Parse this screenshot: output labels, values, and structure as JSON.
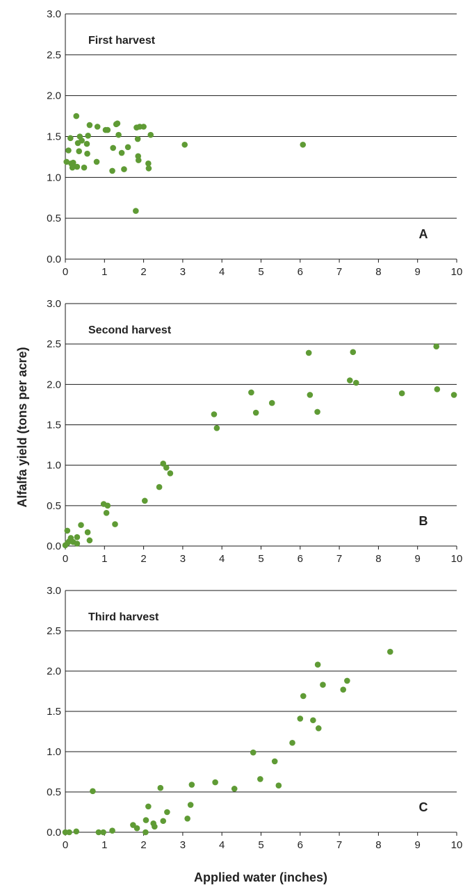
{
  "figure": {
    "ylabel": "Alfalfa yield (tons per acre)",
    "xlabel": "Applied water (inches)"
  },
  "colors": {
    "point": "#5f9b35",
    "grid": "#1a1a1a",
    "text": "#222222"
  },
  "chart_data": [
    {
      "type": "scatter",
      "title": "First harvest",
      "panel_label": "A",
      "xlim": [
        0,
        10
      ],
      "ylim": [
        0,
        3
      ],
      "x_ticks": [
        "0",
        "1",
        "2",
        "3",
        "4",
        "5",
        "6",
        "7",
        "8",
        "9",
        "10"
      ],
      "y_ticks": [
        "0.0",
        "0.5",
        "1.0",
        "1.5",
        "2.0",
        "2.5",
        "3.0"
      ],
      "grid": "horizontal",
      "points": [
        {
          "x": 0.03,
          "y": 1.19
        },
        {
          "x": 0.08,
          "y": 1.33
        },
        {
          "x": 0.13,
          "y": 1.48
        },
        {
          "x": 0.15,
          "y": 1.17
        },
        {
          "x": 0.18,
          "y": 1.12
        },
        {
          "x": 0.2,
          "y": 1.18
        },
        {
          "x": 0.28,
          "y": 1.75
        },
        {
          "x": 0.3,
          "y": 1.13
        },
        {
          "x": 0.32,
          "y": 1.42
        },
        {
          "x": 0.35,
          "y": 1.32
        },
        {
          "x": 0.37,
          "y": 1.5
        },
        {
          "x": 0.42,
          "y": 1.45
        },
        {
          "x": 0.48,
          "y": 1.12
        },
        {
          "x": 0.55,
          "y": 1.41
        },
        {
          "x": 0.56,
          "y": 1.29
        },
        {
          "x": 0.58,
          "y": 1.51
        },
        {
          "x": 0.62,
          "y": 1.64
        },
        {
          "x": 0.8,
          "y": 1.19
        },
        {
          "x": 0.82,
          "y": 1.62
        },
        {
          "x": 1.03,
          "y": 1.58
        },
        {
          "x": 1.08,
          "y": 1.58
        },
        {
          "x": 1.2,
          "y": 1.08
        },
        {
          "x": 1.22,
          "y": 1.36
        },
        {
          "x": 1.3,
          "y": 1.65
        },
        {
          "x": 1.33,
          "y": 1.66
        },
        {
          "x": 1.36,
          "y": 1.52
        },
        {
          "x": 1.44,
          "y": 1.3
        },
        {
          "x": 1.5,
          "y": 1.1
        },
        {
          "x": 1.6,
          "y": 1.37
        },
        {
          "x": 1.8,
          "y": 0.59
        },
        {
          "x": 1.82,
          "y": 1.61
        },
        {
          "x": 1.85,
          "y": 1.47
        },
        {
          "x": 1.86,
          "y": 1.26
        },
        {
          "x": 1.87,
          "y": 1.21
        },
        {
          "x": 1.9,
          "y": 1.62
        },
        {
          "x": 2.0,
          "y": 1.62
        },
        {
          "x": 2.12,
          "y": 1.17
        },
        {
          "x": 2.13,
          "y": 1.11
        },
        {
          "x": 2.18,
          "y": 1.52
        },
        {
          "x": 3.05,
          "y": 1.4
        },
        {
          "x": 6.07,
          "y": 1.4
        }
      ]
    },
    {
      "type": "scatter",
      "title": "Second harvest",
      "panel_label": "B",
      "xlim": [
        0,
        10
      ],
      "ylim": [
        0,
        3
      ],
      "x_ticks": [
        "0",
        "1",
        "2",
        "3",
        "4",
        "5",
        "6",
        "7",
        "8",
        "9",
        "10"
      ],
      "y_ticks": [
        "0.0",
        "0.5",
        "1.0",
        "1.5",
        "2.0",
        "2.5",
        "3.0"
      ],
      "grid": "horizontal",
      "points": [
        {
          "x": 0.0,
          "y": 0.01
        },
        {
          "x": 0.05,
          "y": 0.19
        },
        {
          "x": 0.06,
          "y": 0.04
        },
        {
          "x": 0.1,
          "y": 0.06
        },
        {
          "x": 0.14,
          "y": 0.1
        },
        {
          "x": 0.2,
          "y": 0.05
        },
        {
          "x": 0.3,
          "y": 0.03
        },
        {
          "x": 0.3,
          "y": 0.11
        },
        {
          "x": 0.4,
          "y": 0.26
        },
        {
          "x": 0.57,
          "y": 0.17
        },
        {
          "x": 0.62,
          "y": 0.07
        },
        {
          "x": 0.98,
          "y": 0.52
        },
        {
          "x": 1.05,
          "y": 0.41
        },
        {
          "x": 1.08,
          "y": 0.5
        },
        {
          "x": 1.27,
          "y": 0.27
        },
        {
          "x": 2.03,
          "y": 0.56
        },
        {
          "x": 2.4,
          "y": 0.73
        },
        {
          "x": 2.5,
          "y": 1.02
        },
        {
          "x": 2.58,
          "y": 0.97
        },
        {
          "x": 2.68,
          "y": 0.9
        },
        {
          "x": 3.8,
          "y": 1.63
        },
        {
          "x": 3.87,
          "y": 1.46
        },
        {
          "x": 4.75,
          "y": 1.9
        },
        {
          "x": 4.87,
          "y": 1.65
        },
        {
          "x": 5.28,
          "y": 1.77
        },
        {
          "x": 6.22,
          "y": 2.39
        },
        {
          "x": 6.25,
          "y": 1.87
        },
        {
          "x": 6.44,
          "y": 1.66
        },
        {
          "x": 7.27,
          "y": 2.05
        },
        {
          "x": 7.35,
          "y": 2.4
        },
        {
          "x": 7.43,
          "y": 2.02
        },
        {
          "x": 8.6,
          "y": 1.89
        },
        {
          "x": 9.48,
          "y": 2.47
        },
        {
          "x": 9.5,
          "y": 1.94
        },
        {
          "x": 9.93,
          "y": 1.87
        }
      ]
    },
    {
      "type": "scatter",
      "title": "Third harvest",
      "panel_label": "C",
      "xlim": [
        0,
        10
      ],
      "ylim": [
        0,
        3
      ],
      "x_ticks": [
        "0",
        "1",
        "2",
        "3",
        "4",
        "5",
        "6",
        "7",
        "8",
        "9",
        "10"
      ],
      "y_ticks": [
        "0.0",
        "0.5",
        "1.0",
        "1.5",
        "2.0",
        "2.5",
        "3.0"
      ],
      "grid": "horizontal",
      "points": [
        {
          "x": 0.0,
          "y": 0.0
        },
        {
          "x": 0.1,
          "y": 0.0
        },
        {
          "x": 0.28,
          "y": 0.01
        },
        {
          "x": 0.7,
          "y": 0.51
        },
        {
          "x": 0.85,
          "y": 0.0
        },
        {
          "x": 0.97,
          "y": 0.0
        },
        {
          "x": 1.2,
          "y": 0.02
        },
        {
          "x": 1.73,
          "y": 0.09
        },
        {
          "x": 1.83,
          "y": 0.05
        },
        {
          "x": 2.05,
          "y": 0.0
        },
        {
          "x": 2.06,
          "y": 0.15
        },
        {
          "x": 2.12,
          "y": 0.32
        },
        {
          "x": 2.25,
          "y": 0.11
        },
        {
          "x": 2.28,
          "y": 0.07
        },
        {
          "x": 2.43,
          "y": 0.55
        },
        {
          "x": 2.5,
          "y": 0.14
        },
        {
          "x": 2.6,
          "y": 0.25
        },
        {
          "x": 3.12,
          "y": 0.17
        },
        {
          "x": 3.2,
          "y": 0.34
        },
        {
          "x": 3.23,
          "y": 0.59
        },
        {
          "x": 3.83,
          "y": 0.62
        },
        {
          "x": 4.32,
          "y": 0.54
        },
        {
          "x": 4.8,
          "y": 0.99
        },
        {
          "x": 4.98,
          "y": 0.66
        },
        {
          "x": 5.35,
          "y": 0.88
        },
        {
          "x": 5.45,
          "y": 0.58
        },
        {
          "x": 5.8,
          "y": 1.11
        },
        {
          "x": 6.0,
          "y": 1.41
        },
        {
          "x": 6.08,
          "y": 1.69
        },
        {
          "x": 6.33,
          "y": 1.39
        },
        {
          "x": 6.45,
          "y": 2.08
        },
        {
          "x": 6.47,
          "y": 1.29
        },
        {
          "x": 6.58,
          "y": 1.83
        },
        {
          "x": 7.1,
          "y": 1.77
        },
        {
          "x": 7.2,
          "y": 1.88
        },
        {
          "x": 8.3,
          "y": 2.24
        }
      ]
    }
  ]
}
